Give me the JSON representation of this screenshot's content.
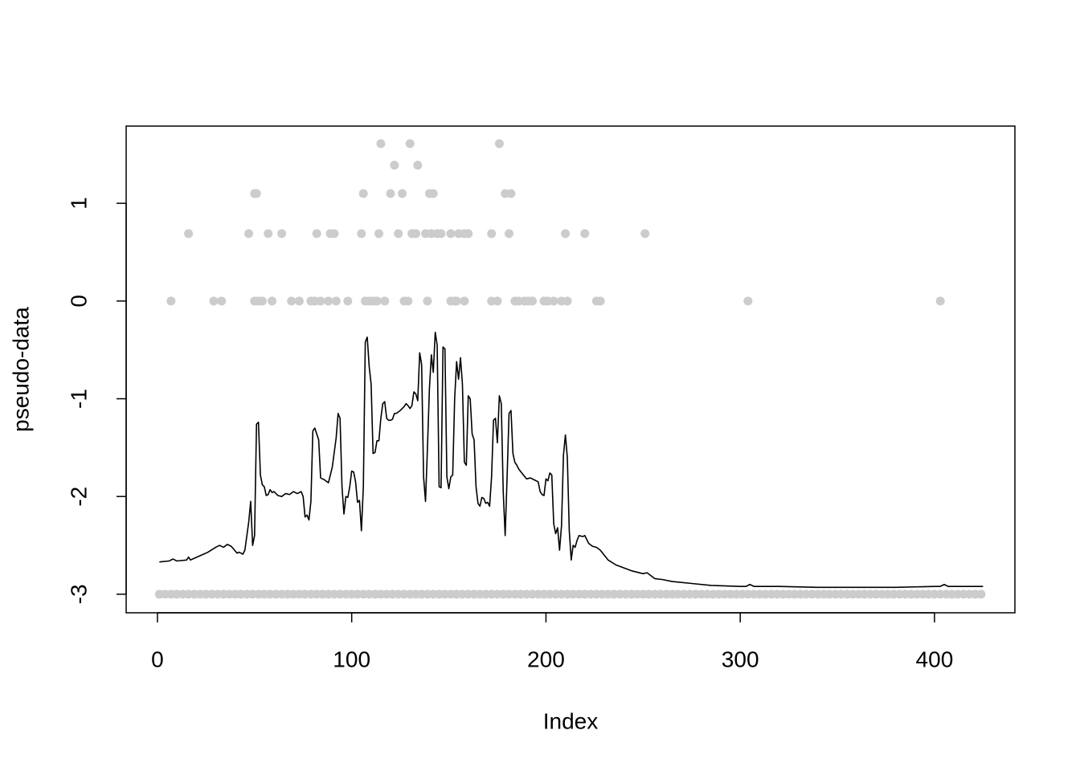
{
  "chart_data": {
    "type": "scatter",
    "xlabel": "Index",
    "ylabel": "pseudo-data",
    "xlim": [
      -16.1,
      441.4
    ],
    "ylim": [
      -3.19,
      1.79
    ],
    "xticks": [
      0,
      100,
      200,
      300,
      400
    ],
    "yticks": [
      -3,
      -2,
      -1,
      0,
      1
    ],
    "series": [
      {
        "color": "#cccccc",
        "x": [
          7,
          29,
          33,
          50,
          52,
          54,
          59,
          69,
          73,
          79,
          81,
          84,
          88,
          92,
          98,
          107,
          109,
          111,
          113,
          117,
          127,
          129,
          139,
          151,
          153,
          154,
          158,
          172,
          175,
          184,
          186,
          189,
          191,
          193,
          199,
          201,
          204,
          208,
          211,
          226,
          228,
          304,
          403
        ],
        "values": [
          0,
          0,
          0,
          0,
          0,
          0,
          0,
          0,
          0,
          0,
          0,
          0,
          0,
          0,
          0,
          0,
          0,
          0,
          0,
          0,
          0,
          0,
          0,
          0,
          0,
          0,
          0,
          0,
          0,
          0,
          0,
          0,
          0,
          0,
          0,
          0,
          0,
          0,
          0,
          0,
          0,
          0,
          0
        ]
      },
      {
        "color": "#cccccc",
        "x": [
          16,
          47,
          57,
          64,
          82,
          89,
          91,
          105,
          114,
          124,
          131,
          133,
          138,
          141,
          144,
          146,
          151,
          155,
          158,
          160,
          172,
          181,
          210,
          220,
          251
        ],
        "values": [
          0.69,
          0.69,
          0.69,
          0.69,
          0.69,
          0.69,
          0.69,
          0.69,
          0.69,
          0.69,
          0.69,
          0.69,
          0.69,
          0.69,
          0.69,
          0.69,
          0.69,
          0.69,
          0.69,
          0.69,
          0.69,
          0.69,
          0.69,
          0.69,
          0.69
        ]
      },
      {
        "color": "#cccccc",
        "x": [
          50,
          51,
          106,
          120,
          126,
          140,
          142,
          179,
          182
        ],
        "values": [
          1.1,
          1.1,
          1.1,
          1.1,
          1.1,
          1.1,
          1.1,
          1.1,
          1.1
        ]
      },
      {
        "color": "#cccccc",
        "x": [
          122,
          134
        ],
        "values": [
          1.39,
          1.39
        ]
      },
      {
        "color": "#cccccc",
        "x": [
          115,
          130,
          176
        ],
        "values": [
          1.61,
          1.61,
          1.61
        ]
      },
      {
        "color": "#cccccc",
        "x": [
          1,
          4,
          7,
          10,
          13,
          16,
          19,
          22,
          25,
          28,
          31,
          34,
          37,
          40,
          43,
          46,
          49,
          52,
          55,
          58,
          61,
          64,
          67,
          70,
          73,
          76,
          79,
          82,
          85,
          88,
          91,
          94,
          97,
          100,
          103,
          106,
          109,
          112,
          115,
          118,
          121,
          124,
          127,
          130,
          133,
          136,
          139,
          142,
          145,
          148,
          151,
          154,
          157,
          160,
          163,
          166,
          169,
          172,
          175,
          178,
          181,
          184,
          187,
          190,
          193,
          196,
          199,
          202,
          205,
          208,
          211,
          214,
          217,
          220,
          223,
          226,
          229,
          232,
          235,
          238,
          241,
          244,
          247,
          250,
          253,
          256,
          259,
          262,
          265,
          268,
          271,
          274,
          277,
          280,
          283,
          286,
          289,
          292,
          295,
          298,
          301,
          304,
          307,
          310,
          313,
          316,
          319,
          322,
          325,
          328,
          331,
          334,
          337,
          340,
          343,
          346,
          349,
          352,
          355,
          358,
          361,
          364,
          367,
          370,
          373,
          376,
          379,
          382,
          385,
          388,
          391,
          394,
          397,
          400,
          403,
          406,
          409,
          412,
          415,
          418,
          421,
          424
        ],
        "values": [
          -3,
          -3,
          -3,
          -3,
          -3,
          -3,
          -3,
          -3,
          -3,
          -3,
          -3,
          -3,
          -3,
          -3,
          -3,
          -3,
          -3,
          -3,
          -3,
          -3,
          -3,
          -3,
          -3,
          -3,
          -3,
          -3,
          -3,
          -3,
          -3,
          -3,
          -3,
          -3,
          -3,
          -3,
          -3,
          -3,
          -3,
          -3,
          -3,
          -3,
          -3,
          -3,
          -3,
          -3,
          -3,
          -3,
          -3,
          -3,
          -3,
          -3,
          -3,
          -3,
          -3,
          -3,
          -3,
          -3,
          -3,
          -3,
          -3,
          -3,
          -3,
          -3,
          -3,
          -3,
          -3,
          -3,
          -3,
          -3,
          -3,
          -3,
          -3,
          -3,
          -3,
          -3,
          -3,
          -3,
          -3,
          -3,
          -3,
          -3,
          -3,
          -3,
          -3,
          -3,
          -3,
          -3,
          -3,
          -3,
          -3,
          -3,
          -3,
          -3,
          -3,
          -3,
          -3,
          -3,
          -3,
          -3,
          -3,
          -3,
          -3,
          -3,
          -3,
          -3,
          -3,
          -3,
          -3,
          -3,
          -3,
          -3,
          -3,
          -3,
          -3,
          -3,
          -3,
          -3,
          -3,
          -3,
          -3,
          -3,
          -3,
          -3,
          -3,
          -3,
          -3,
          -3,
          -3,
          -3,
          -3,
          -3,
          -3,
          -3,
          -3,
          -3,
          -3,
          -3,
          -3,
          -3,
          -3,
          -3,
          -3,
          -3
        ]
      },
      {
        "type": "line",
        "color": "#000000",
        "x": [
          1,
          6,
          8,
          10,
          15,
          16,
          17,
          26,
          30,
          32,
          34,
          36,
          38,
          41,
          42,
          44,
          45,
          47,
          48,
          49,
          50,
          51,
          52,
          53,
          54,
          55,
          56,
          57,
          58,
          59,
          60,
          62,
          64,
          66,
          68,
          70,
          72,
          74,
          75,
          76,
          77,
          78,
          79,
          80,
          81,
          82,
          83,
          84,
          86,
          88,
          90,
          92,
          93,
          94,
          95,
          96,
          97,
          98,
          99,
          100,
          101,
          102,
          103,
          104,
          105,
          106,
          107,
          108,
          109,
          110,
          111,
          112,
          113,
          114,
          115,
          116,
          117,
          118,
          119,
          120,
          121,
          122,
          123,
          125,
          127,
          128,
          129,
          130,
          131,
          132,
          133,
          134,
          135,
          136,
          137,
          138,
          139,
          140,
          141,
          142,
          143,
          144,
          145,
          146,
          147,
          148,
          149,
          150,
          151,
          152,
          153,
          154,
          155,
          156,
          157,
          158,
          159,
          160,
          161,
          162,
          163,
          164,
          165,
          166,
          167,
          168,
          169,
          170,
          171,
          172,
          173,
          174,
          175,
          176,
          177,
          178,
          179,
          180,
          181,
          182,
          183,
          184,
          185,
          186,
          188,
          190,
          192,
          194,
          196,
          197,
          198,
          199,
          200,
          201,
          202,
          203,
          204,
          205,
          206,
          207,
          208,
          209,
          210,
          211,
          212,
          213,
          214,
          215,
          216,
          217,
          219,
          220,
          222,
          224,
          226,
          228,
          230,
          232,
          236,
          240,
          244,
          250,
          252,
          254,
          256,
          260,
          265,
          275,
          285,
          300,
          303,
          305,
          307,
          320,
          340,
          360,
          380,
          400,
          403,
          405,
          407,
          425
        ],
        "values": [
          -2.67,
          -2.66,
          -2.64,
          -2.66,
          -2.65,
          -2.62,
          -2.65,
          -2.57,
          -2.52,
          -2.5,
          -2.52,
          -2.49,
          -2.51,
          -2.58,
          -2.57,
          -2.59,
          -2.55,
          -2.26,
          -2.05,
          -2.5,
          -2.4,
          -1.26,
          -1.24,
          -1.78,
          -1.88,
          -1.9,
          -1.99,
          -1.98,
          -1.93,
          -1.96,
          -1.95,
          -1.99,
          -2,
          -1.97,
          -1.98,
          -1.95,
          -1.97,
          -1.95,
          -2,
          -2.21,
          -2.19,
          -2.24,
          -2.05,
          -1.33,
          -1.3,
          -1.36,
          -1.42,
          -1.81,
          -1.83,
          -1.86,
          -1.7,
          -1.4,
          -1.15,
          -1.2,
          -1.9,
          -2.18,
          -2,
          -2.01,
          -1.9,
          -1.74,
          -1.75,
          -1.85,
          -2.06,
          -2.04,
          -2.35,
          -1.9,
          -0.42,
          -0.37,
          -0.67,
          -0.85,
          -1.56,
          -1.55,
          -1.43,
          -1.43,
          -1.2,
          -1.05,
          -1.03,
          -1.2,
          -1.22,
          -1.22,
          -1.21,
          -1.15,
          -1.15,
          -1.12,
          -1.08,
          -1.05,
          -1.07,
          -1.1,
          -1.07,
          -0.93,
          -0.95,
          -1.02,
          -0.53,
          -0.65,
          -1.8,
          -2.05,
          -1.5,
          -0.9,
          -0.55,
          -0.73,
          -0.32,
          -0.45,
          -1.9,
          -1.91,
          -0.47,
          -0.49,
          -1.8,
          -1.92,
          -1.8,
          -1.78,
          -1,
          -0.62,
          -0.8,
          -0.58,
          -0.85,
          -1.65,
          -1.68,
          -0.97,
          -1,
          -1.36,
          -1.42,
          -1.9,
          -2.07,
          -2.1,
          -2.01,
          -2.02,
          -2.07,
          -2.06,
          -2.1,
          -1.8,
          -1.22,
          -1.2,
          -1.45,
          -0.97,
          -1.05,
          -1.95,
          -2.4,
          -1.8,
          -1.15,
          -1.12,
          -1.56,
          -1.65,
          -1.68,
          -1.72,
          -1.77,
          -1.82,
          -1.81,
          -1.83,
          -1.85,
          -1.95,
          -1.98,
          -1.99,
          -1.82,
          -1.84,
          -1.76,
          -1.78,
          -2.28,
          -2.38,
          -2.32,
          -2.55,
          -2.3,
          -1.58,
          -1.37,
          -1.6,
          -2.35,
          -2.65,
          -2.5,
          -2.52,
          -2.45,
          -2.4,
          -2.41,
          -2.4,
          -2.48,
          -2.51,
          -2.52,
          -2.55,
          -2.6,
          -2.65,
          -2.7,
          -2.73,
          -2.76,
          -2.79,
          -2.78,
          -2.81,
          -2.84,
          -2.85,
          -2.87,
          -2.89,
          -2.91,
          -2.92,
          -2.92,
          -2.9,
          -2.92,
          -2.92,
          -2.93,
          -2.93,
          -2.93,
          -2.92,
          -2.92,
          -2.9,
          -2.92,
          -2.92
        ]
      }
    ]
  }
}
